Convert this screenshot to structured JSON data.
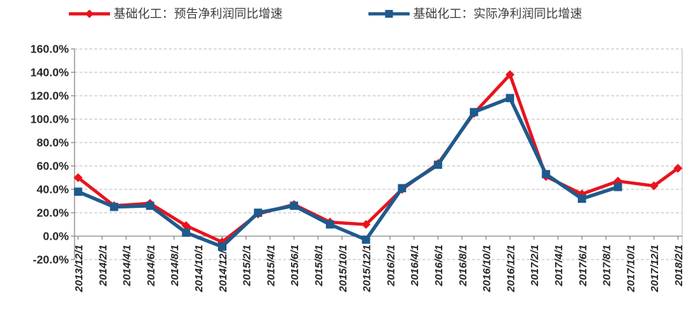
{
  "legend": {
    "items": [
      {
        "label": "基础化工：预告净利润同比增速",
        "color": "#E8131D",
        "marker": "diamond"
      },
      {
        "label": "基础化工：实际净利润同比增速",
        "color": "#1E5A8C",
        "marker": "square"
      }
    ]
  },
  "chart_data": {
    "type": "line",
    "title": "",
    "xlabel": "",
    "ylabel": "",
    "ylim": [
      -20,
      160
    ],
    "y_step": 20,
    "grid": "horizontal-dashed",
    "legend_position": "top",
    "y_tick_labels": [
      "160.0%",
      "140.0%",
      "120.0%",
      "100.0%",
      "80.0%",
      "60.0%",
      "40.0%",
      "20.0%",
      "0.0%",
      "-20.0%"
    ],
    "x_tick_labels": [
      "2013/12/1",
      "2014/2/1",
      "2014/4/1",
      "2014/6/1",
      "2014/8/1",
      "2014/10/1",
      "2014/12/1",
      "2015/2/1",
      "2015/4/1",
      "2015/6/1",
      "2015/8/1",
      "2015/10/1",
      "2015/12/1",
      "2016/2/1",
      "2016/4/1",
      "2016/6/1",
      "2016/8/1",
      "2016/10/1",
      "2016/12/1",
      "2017/2/1",
      "2017/4/1",
      "2017/6/1",
      "2017/8/1",
      "2017/10/1",
      "2017/12/1",
      "2018/2/1"
    ],
    "series": [
      {
        "name": "基础化工：预告净利润同比增速",
        "color": "#E8131D",
        "marker": "diamond",
        "points": [
          {
            "date": "2013/12",
            "value": 50
          },
          {
            "date": "2014/3",
            "value": 26
          },
          {
            "date": "2014/6",
            "value": 28
          },
          {
            "date": "2014/9",
            "value": 9
          },
          {
            "date": "2014/12",
            "value": -5
          },
          {
            "date": "2015/3",
            "value": 19
          },
          {
            "date": "2015/6",
            "value": 27
          },
          {
            "date": "2015/9",
            "value": 12
          },
          {
            "date": "2015/12",
            "value": 10
          },
          {
            "date": "2016/3",
            "value": 40
          },
          {
            "date": "2016/6",
            "value": 62
          },
          {
            "date": "2016/9",
            "value": 105
          },
          {
            "date": "2016/12",
            "value": 138
          },
          {
            "date": "2017/3",
            "value": 51
          },
          {
            "date": "2017/6",
            "value": 36
          },
          {
            "date": "2017/9",
            "value": 47
          },
          {
            "date": "2017/12",
            "value": 43
          },
          {
            "date": "2018/2",
            "value": 58
          }
        ]
      },
      {
        "name": "基础化工：实际净利润同比增速",
        "color": "#1E5A8C",
        "marker": "square",
        "points": [
          {
            "date": "2013/12",
            "value": 38
          },
          {
            "date": "2014/3",
            "value": 25
          },
          {
            "date": "2014/6",
            "value": 26
          },
          {
            "date": "2014/9",
            "value": 3
          },
          {
            "date": "2014/12",
            "value": -9
          },
          {
            "date": "2015/3",
            "value": 20
          },
          {
            "date": "2015/6",
            "value": 26
          },
          {
            "date": "2015/9",
            "value": 10
          },
          {
            "date": "2015/12",
            "value": -3
          },
          {
            "date": "2016/3",
            "value": 41
          },
          {
            "date": "2016/6",
            "value": 61
          },
          {
            "date": "2016/9",
            "value": 106
          },
          {
            "date": "2016/12",
            "value": 118
          },
          {
            "date": "2017/3",
            "value": 53
          },
          {
            "date": "2017/6",
            "value": 32
          },
          {
            "date": "2017/9",
            "value": 42
          }
        ]
      }
    ],
    "colors": {
      "grid": "#b8b8b8",
      "axis": "#8c8c8c",
      "tick_text": "#262626"
    }
  }
}
